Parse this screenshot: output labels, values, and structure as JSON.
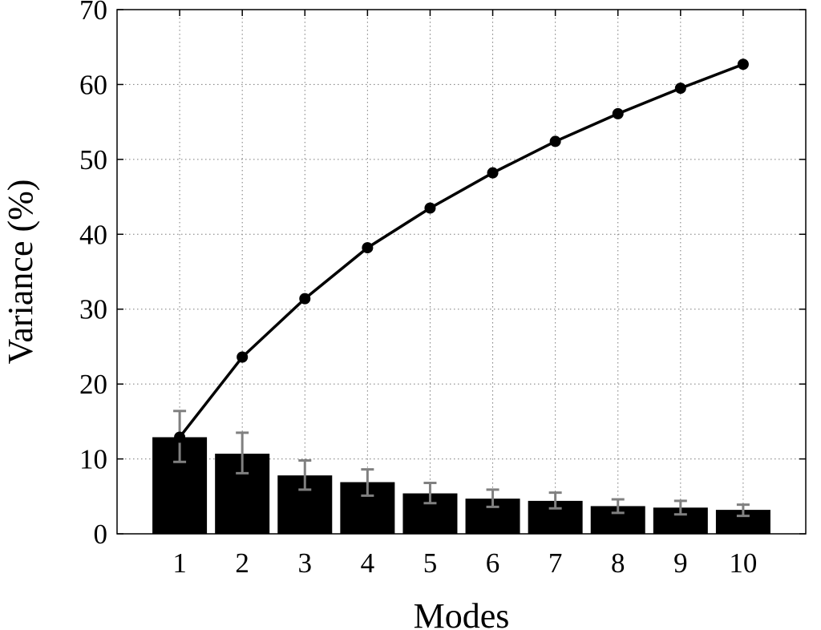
{
  "chart_data": {
    "type": "bar",
    "xlabel": "Modes",
    "ylabel": "Variance (%)",
    "categories": [
      "1",
      "2",
      "3",
      "4",
      "5",
      "6",
      "7",
      "8",
      "9",
      "10"
    ],
    "ylim": [
      0,
      70
    ],
    "yticks": [
      "0",
      "10",
      "20",
      "30",
      "40",
      "50",
      "60",
      "70"
    ],
    "grid": true,
    "bars": {
      "values": [
        12.9,
        10.7,
        7.8,
        6.9,
        5.4,
        4.7,
        4.4,
        3.7,
        3.5,
        3.2
      ],
      "err_low": [
        9.6,
        8.1,
        5.9,
        5.1,
        4.1,
        3.6,
        3.4,
        2.8,
        2.6,
        2.4
      ],
      "err_high": [
        16.4,
        13.5,
        9.8,
        8.6,
        6.8,
        5.9,
        5.5,
        4.6,
        4.4,
        3.9
      ],
      "color": "#000000",
      "error_color": "#808080"
    },
    "line": {
      "values": [
        12.9,
        23.6,
        31.4,
        38.2,
        43.5,
        48.2,
        52.4,
        56.1,
        59.5,
        62.7
      ],
      "color": "#000000",
      "marker": "circle"
    }
  }
}
